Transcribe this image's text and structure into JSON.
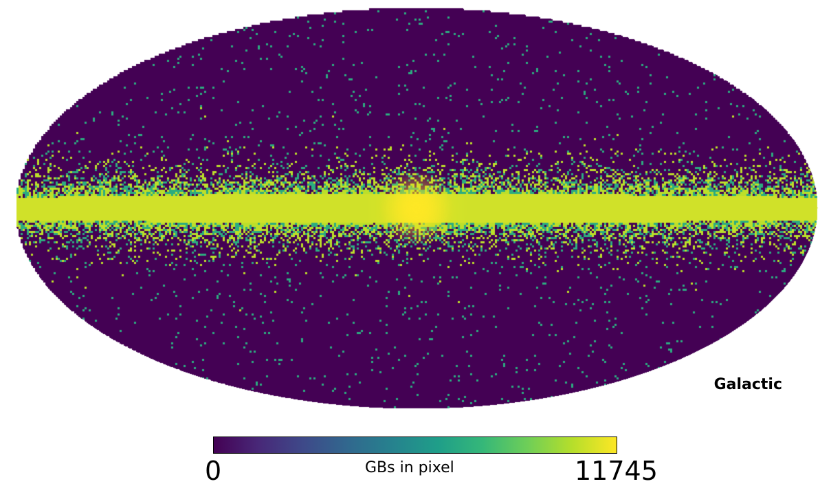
{
  "chart_data": {
    "type": "heatmap",
    "projection": "mollweide",
    "coordinate_system": "Galactic",
    "colormap": "viridis",
    "colormap_stops": [
      "#440154",
      "#482878",
      "#3e4989",
      "#31688e",
      "#26828e",
      "#1f9e89",
      "#35b779",
      "#6ece58",
      "#b5de2b",
      "#fde725"
    ],
    "colorbar": {
      "label": "GBs in pixel",
      "min_label": "0",
      "max_label": "11745",
      "min": 0,
      "max": 11745
    },
    "grid": false,
    "legend": "none"
  }
}
